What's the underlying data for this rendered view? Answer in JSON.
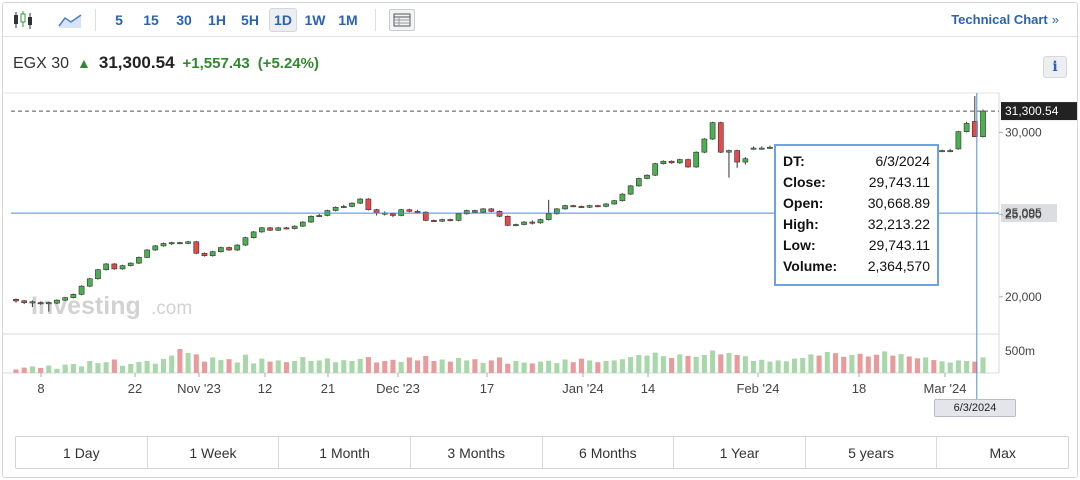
{
  "toolbar": {
    "intervals": [
      "5",
      "15",
      "30",
      "1H",
      "5H",
      "1D",
      "1W",
      "1M"
    ],
    "active_interval": "1D",
    "technical_chart_label": "Technical Chart",
    "technical_chart_chevron": "»"
  },
  "quote": {
    "name": "EGX 30",
    "last": "31,300.54",
    "change": "+1,557.43",
    "change_pct": "(+5.24%)",
    "direction": "up"
  },
  "info_button_label": "i",
  "watermark": {
    "brand": "Investing",
    "suffix": ".com"
  },
  "tooltip": {
    "rows": [
      {
        "key": "DT:",
        "value": "6/3/2024"
      },
      {
        "key": "Close:",
        "value": "29,743.11"
      },
      {
        "key": "Open:",
        "value": "30,668.89"
      },
      {
        "key": "High:",
        "value": "32,213.22"
      },
      {
        "key": "Low:",
        "value": "29,743.11"
      },
      {
        "key": "Volume:",
        "value": "2,364,570"
      }
    ]
  },
  "crosshair_date_label": "6/3/2024",
  "price_tags": {
    "last": "31,300.54",
    "crosshair": "25,095"
  },
  "volume_axis_label": "500m",
  "ranges": [
    "1 Day",
    "1 Week",
    "1 Month",
    "3 Months",
    "6 Months",
    "1 Year",
    "5 years",
    "Max"
  ],
  "colors": {
    "accent": "#2a62b8",
    "up": "#2f8a2f",
    "candle_up": "#4caf50",
    "candle_down": "#e14b4b",
    "vol_up": "#a8d8aa",
    "vol_down": "#e99b9b",
    "crosshair": "#4a8fd6"
  },
  "chart_data": {
    "type": "candlestick",
    "y_axis": {
      "ticks": [
        20000,
        25000,
        30000
      ],
      "tick_labels": [
        "20,000",
        "25,000",
        "30,000"
      ],
      "range": [
        17800,
        32400
      ]
    },
    "x_tick_labels": [
      "8",
      "22",
      "Nov '23",
      "12",
      "21",
      "Dec '23",
      "17",
      "Jan '24",
      "14",
      "Feb '24",
      "18",
      "Mar '24"
    ],
    "last_price": 31300.54,
    "crosshair_price": 25095,
    "candles": [
      [
        19850,
        19750,
        19900,
        19650
      ],
      [
        19760,
        19650,
        19800,
        19560
      ],
      [
        19650,
        19700,
        19780,
        19380
      ],
      [
        19650,
        19600,
        19700,
        19520
      ],
      [
        19600,
        19650,
        19700,
        19100
      ],
      [
        19620,
        19800,
        19840,
        19560
      ],
      [
        19800,
        19950,
        20000,
        19750
      ],
      [
        19950,
        20150,
        20200,
        19900
      ],
      [
        20150,
        20650,
        20700,
        20100
      ],
      [
        20650,
        21100,
        21150,
        20600
      ],
      [
        21100,
        21650,
        21700,
        21050
      ],
      [
        21650,
        22000,
        22050,
        21600
      ],
      [
        22000,
        21700,
        22050,
        21650
      ],
      [
        21700,
        21900,
        21950,
        21650
      ],
      [
        21900,
        22050,
        22100,
        21850
      ],
      [
        22050,
        22400,
        22450,
        22000
      ],
      [
        22400,
        22850,
        22900,
        22350
      ],
      [
        22850,
        23100,
        23150,
        22800
      ],
      [
        23100,
        23250,
        23300,
        23050
      ],
      [
        23250,
        23300,
        23350,
        23150
      ],
      [
        23300,
        23250,
        23350,
        23200
      ],
      [
        23250,
        23350,
        23400,
        23200
      ],
      [
        23350,
        22650,
        23400,
        22600
      ],
      [
        22650,
        22500,
        22700,
        22450
      ],
      [
        22500,
        22750,
        22800,
        22450
      ],
      [
        22750,
        23000,
        23050,
        22700
      ],
      [
        23000,
        22850,
        23050,
        22800
      ],
      [
        22850,
        23150,
        23200,
        22800
      ],
      [
        23150,
        23600,
        23650,
        23100
      ],
      [
        23600,
        23950,
        24000,
        23550
      ],
      [
        23950,
        24200,
        24250,
        23900
      ],
      [
        24200,
        24050,
        24250,
        24000
      ],
      [
        24050,
        24200,
        24250,
        24000
      ],
      [
        24200,
        24150,
        24250,
        24100
      ],
      [
        24150,
        24300,
        24350,
        24100
      ],
      [
        24300,
        24550,
        24600,
        24250
      ],
      [
        24550,
        24900,
        24950,
        24500
      ],
      [
        24900,
        24950,
        25050,
        24850
      ],
      [
        24950,
        25250,
        25300,
        24900
      ],
      [
        25250,
        25450,
        25500,
        25200
      ],
      [
        25450,
        25500,
        25600,
        25400
      ],
      [
        25500,
        25700,
        25750,
        25450
      ],
      [
        25700,
        25950,
        26000,
        25650
      ],
      [
        25950,
        25300,
        26000,
        25250
      ],
      [
        25300,
        25100,
        25350,
        24950
      ],
      [
        25100,
        25050,
        25200,
        24950
      ],
      [
        25050,
        24950,
        25100,
        24850
      ],
      [
        24950,
        25300,
        25350,
        24900
      ],
      [
        25300,
        25200,
        25350,
        25150
      ],
      [
        25200,
        25150,
        25300,
        25050
      ],
      [
        25150,
        24650,
        25200,
        24600
      ],
      [
        24650,
        24600,
        24700,
        24550
      ],
      [
        24600,
        24700,
        24750,
        24550
      ],
      [
        24700,
        24650,
        24750,
        24600
      ],
      [
        24650,
        25050,
        25100,
        24600
      ],
      [
        25050,
        25250,
        25300,
        25000
      ],
      [
        25250,
        25150,
        25300,
        25100
      ],
      [
        25150,
        25350,
        25400,
        25100
      ],
      [
        25350,
        25200,
        25400,
        25150
      ],
      [
        25200,
        24900,
        25250,
        24850
      ],
      [
        24900,
        24350,
        24950,
        24300
      ],
      [
        24350,
        24400,
        24450,
        24300
      ],
      [
        24400,
        24550,
        24600,
        24350
      ],
      [
        24550,
        24500,
        24650,
        24400
      ],
      [
        24500,
        24700,
        24750,
        24450
      ],
      [
        24700,
        25050,
        25900,
        24650
      ],
      [
        25050,
        25350,
        25400,
        25000
      ],
      [
        25350,
        25550,
        25600,
        25300
      ],
      [
        25550,
        25500,
        25600,
        25450
      ],
      [
        25500,
        25450,
        25550,
        25400
      ],
      [
        25450,
        25550,
        25600,
        25400
      ],
      [
        25550,
        25500,
        25600,
        25450
      ],
      [
        25500,
        25650,
        25700,
        25450
      ],
      [
        25650,
        25850,
        25900,
        25600
      ],
      [
        25850,
        26250,
        26300,
        25800
      ],
      [
        26250,
        26750,
        26800,
        26200
      ],
      [
        26750,
        27200,
        27250,
        26700
      ],
      [
        27200,
        27400,
        27450,
        27150
      ],
      [
        27400,
        28100,
        28150,
        27350
      ],
      [
        28100,
        28250,
        28300,
        28050
      ],
      [
        28250,
        28150,
        28300,
        28100
      ],
      [
        28150,
        28350,
        28400,
        28100
      ],
      [
        28350,
        27900,
        28400,
        27850
      ],
      [
        27900,
        28800,
        28850,
        27850
      ],
      [
        28800,
        29600,
        29650,
        28750
      ],
      [
        29600,
        30600,
        30650,
        29550
      ],
      [
        30600,
        28800,
        30650,
        28750
      ],
      [
        28800,
        28900,
        28950,
        27250
      ],
      [
        28900,
        28200,
        28950,
        27850
      ],
      [
        28200,
        28400,
        28500,
        28050
      ],
      [
        29000,
        29050,
        29150,
        28950
      ],
      [
        29050,
        29050,
        29150,
        28950
      ],
      [
        29050,
        29100,
        29200,
        29000
      ],
      [
        29100,
        29100,
        29200,
        29050
      ],
      [
        29100,
        29150,
        29250,
        29050
      ],
      [
        29150,
        29150,
        29250,
        29100
      ],
      [
        29150,
        29200,
        29300,
        29100
      ],
      [
        29200,
        29200,
        29300,
        29150
      ],
      [
        29200,
        29100,
        29250,
        29050
      ],
      [
        29100,
        29150,
        29250,
        29050
      ],
      [
        29150,
        29100,
        29200,
        29050
      ],
      [
        29100,
        29050,
        29150,
        29000
      ],
      [
        29050,
        29100,
        29150,
        29000
      ],
      [
        29100,
        29050,
        29150,
        29000
      ],
      [
        29050,
        29000,
        29100,
        28950
      ],
      [
        29000,
        28950,
        29050,
        28900
      ],
      [
        28950,
        29000,
        29050,
        28900
      ],
      [
        29000,
        28950,
        29050,
        28900
      ],
      [
        28950,
        29000,
        29050,
        28900
      ],
      [
        29000,
        28900,
        29050,
        28850
      ],
      [
        28900,
        28800,
        28950,
        28750
      ],
      [
        28800,
        28900,
        28950,
        28750
      ],
      [
        28900,
        28850,
        28950,
        28800
      ],
      [
        28850,
        28900,
        28950,
        28800
      ],
      [
        28850,
        28900,
        29000,
        28800
      ],
      [
        29000,
        30050,
        30100,
        28950
      ],
      [
        30050,
        30550,
        30650,
        30000
      ],
      [
        30668.89,
        29743.11,
        32213.22,
        29743.11
      ],
      [
        29743.11,
        31300.54,
        31400,
        29700
      ]
    ],
    "volumes": [
      0.12,
      0.18,
      0.22,
      0.17,
      0.25,
      0.14,
      0.28,
      0.3,
      0.22,
      0.4,
      0.33,
      0.36,
      0.45,
      0.24,
      0.3,
      0.37,
      0.4,
      0.31,
      0.47,
      0.58,
      0.8,
      0.67,
      0.62,
      0.38,
      0.52,
      0.43,
      0.46,
      0.35,
      0.61,
      0.32,
      0.48,
      0.38,
      0.42,
      0.36,
      0.4,
      0.53,
      0.4,
      0.42,
      0.49,
      0.36,
      0.43,
      0.4,
      0.47,
      0.53,
      0.35,
      0.4,
      0.44,
      0.37,
      0.52,
      0.42,
      0.57,
      0.4,
      0.45,
      0.38,
      0.5,
      0.42,
      0.46,
      0.34,
      0.42,
      0.52,
      0.31,
      0.4,
      0.35,
      0.32,
      0.38,
      0.41,
      0.33,
      0.45,
      0.36,
      0.48,
      0.42,
      0.36,
      0.4,
      0.42,
      0.46,
      0.53,
      0.6,
      0.58,
      0.68,
      0.56,
      0.5,
      0.62,
      0.57,
      0.54,
      0.6,
      0.75,
      0.62,
      0.67,
      0.6,
      0.56,
      0.4,
      0.44,
      0.38,
      0.42,
      0.39,
      0.48,
      0.5,
      0.62,
      0.58,
      0.7,
      0.66,
      0.54,
      0.6,
      0.64,
      0.55,
      0.61,
      0.72,
      0.58,
      0.63,
      0.55,
      0.49,
      0.52,
      0.43,
      0.39,
      0.35,
      0.42,
      0.4,
      0.38,
      0.52
    ]
  }
}
